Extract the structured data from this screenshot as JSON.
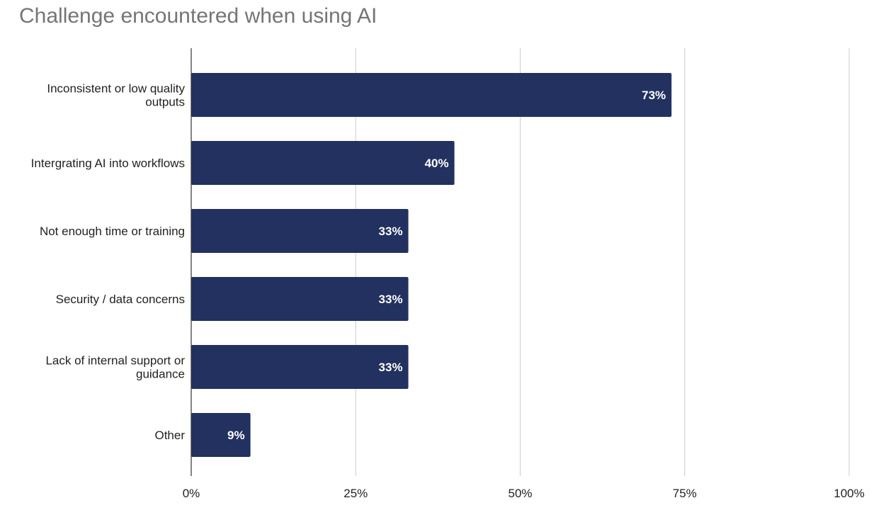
{
  "chart_data": {
    "type": "bar",
    "orientation": "horizontal",
    "title": "Challenge encountered when using AI",
    "categories": [
      "Inconsistent or low quality outputs",
      "Intergrating AI into workflows",
      "Not enough time or training",
      "Security / data concerns",
      "Lack of internal support or guidance",
      "Other"
    ],
    "values": [
      73,
      40,
      33,
      33,
      33,
      9
    ],
    "data_labels": [
      "73%",
      "40%",
      "33%",
      "33%",
      "33%",
      "9%"
    ],
    "x_ticks": [
      "0%",
      "25%",
      "50%",
      "75%",
      "100%"
    ],
    "xlim": [
      0,
      100
    ],
    "xlabel": "",
    "ylabel": "",
    "grid": true,
    "legend": "none",
    "bar_color": "#22315f",
    "grid_color": "#cccccc",
    "title_color": "#757575"
  }
}
